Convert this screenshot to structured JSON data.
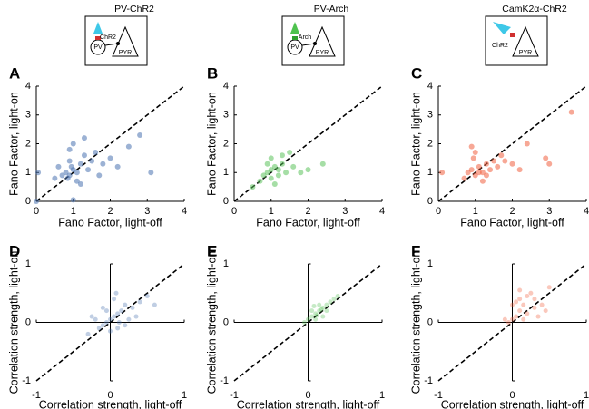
{
  "chart_data": [
    {
      "type": "scatter",
      "panel": "A",
      "title": "PV-ChR2",
      "inset_labels": [
        "PV",
        "ChR2",
        "PYR"
      ],
      "xlabel": "Fano Factor, light-off",
      "ylabel": "Fano Factor, light-on",
      "color": "#4a72b0",
      "xlim": [
        0,
        4
      ],
      "ylim": [
        0,
        4
      ],
      "xticks": [
        0,
        1,
        2,
        3,
        4
      ],
      "yticks": [
        0,
        1,
        2,
        3,
        4
      ],
      "x": [
        0.8,
        0.9,
        1.0,
        1.1,
        0.95,
        1.2,
        0.85,
        1.3,
        1.5,
        0.7,
        1.0,
        1.4,
        1.6,
        1.8,
        2.0,
        2.2,
        2.5,
        0.6,
        0.9,
        1.1,
        1.0,
        1.3,
        2.8,
        3.1,
        1.7,
        0.5,
        0.05,
        0.9,
        1.2,
        0.0
      ],
      "values": [
        1.0,
        0.9,
        1.1,
        1.0,
        1.2,
        1.3,
        0.8,
        1.6,
        1.4,
        0.9,
        2.0,
        1.1,
        1.7,
        1.3,
        1.5,
        1.2,
        1.9,
        1.2,
        1.8,
        0.7,
        0.05,
        2.2,
        2.3,
        1.0,
        0.9,
        0.8,
        1.0,
        1.4,
        0.6,
        0.0
      ]
    },
    {
      "type": "scatter",
      "panel": "B",
      "title": "PV-Arch",
      "inset_labels": [
        "PV",
        "Arch",
        "PYR"
      ],
      "xlabel": "Fano Factor, light-off",
      "ylabel": "Fano Factor, light-on",
      "color": "#5cc25c",
      "xlim": [
        0,
        4
      ],
      "ylim": [
        0,
        4
      ],
      "xticks": [
        0,
        1,
        2,
        3,
        4
      ],
      "yticks": [
        0,
        1,
        2,
        3,
        4
      ],
      "x": [
        0.9,
        1.0,
        1.1,
        1.2,
        0.8,
        1.3,
        1.0,
        1.4,
        0.7,
        1.5,
        1.6,
        1.1,
        0.9,
        2.0,
        2.4,
        1.2,
        1.0,
        0.5,
        1.3,
        1.8
      ],
      "values": [
        1.0,
        0.8,
        1.2,
        1.1,
        0.9,
        1.3,
        1.5,
        1.0,
        0.7,
        1.7,
        1.2,
        0.6,
        1.3,
        1.1,
        1.3,
        0.9,
        1.1,
        0.5,
        1.6,
        1.0
      ]
    },
    {
      "type": "scatter",
      "panel": "C",
      "title": "CamK2α-ChR2",
      "inset_labels": [
        "ChR2",
        "PYR"
      ],
      "xlabel": "Fano Factor, light-off",
      "ylabel": "Fano Factor, light-on",
      "color": "#f0603f",
      "xlim": [
        0,
        4
      ],
      "ylim": [
        0,
        4
      ],
      "xticks": [
        0,
        1,
        2,
        3,
        4
      ],
      "yticks": [
        0,
        1,
        2,
        3,
        4
      ],
      "x": [
        0.8,
        0.9,
        1.0,
        1.1,
        1.2,
        1.3,
        0.95,
        1.4,
        1.5,
        1.7,
        2.0,
        0.7,
        1.0,
        1.2,
        2.4,
        2.9,
        3.6,
        1.6,
        1.1,
        0.9,
        0.1,
        1.8,
        2.2,
        1.3,
        3.0
      ],
      "values": [
        1.0,
        1.1,
        0.9,
        1.2,
        1.0,
        1.3,
        1.5,
        1.1,
        1.4,
        1.6,
        1.3,
        0.8,
        1.7,
        0.7,
        2.0,
        1.5,
        3.1,
        1.2,
        1.0,
        1.9,
        1.0,
        1.4,
        1.1,
        0.9,
        1.3
      ]
    },
    {
      "type": "scatter",
      "panel": "D",
      "xlabel": "Correlation strength, light-off",
      "ylabel": "Correlation strength, light-on",
      "color": "#4a72b0",
      "xlim": [
        -1,
        1
      ],
      "ylim": [
        -1,
        1
      ],
      "xticks": [
        -1,
        0,
        1
      ],
      "yticks": [
        -1,
        0,
        1
      ],
      "x": [
        0,
        0.05,
        -0.05,
        0.1,
        -0.1,
        0.15,
        0.2,
        -0.15,
        0.3,
        -0.2,
        0.4,
        0.25,
        -0.3,
        0.05,
        0.1,
        0.5,
        -0.05,
        0.0,
        0.35,
        -0.1,
        0.6,
        0.2,
        -0.25,
        0.12,
        0.08
      ],
      "values": [
        0.05,
        0.1,
        0.0,
        0.15,
        -0.05,
        0.2,
        0.3,
        -0.1,
        0.25,
        0.05,
        0.35,
        0.05,
        -0.2,
        0.4,
        -0.1,
        0.45,
        0.2,
        -0.15,
        0.1,
        0.25,
        0.3,
        -0.05,
        0.1,
        0.0,
        0.5
      ]
    },
    {
      "type": "scatter",
      "panel": "E",
      "xlabel": "Correlation strength, light-off",
      "ylabel": "Correlation strength, light-on",
      "color": "#5cc25c",
      "xlim": [
        -1,
        1
      ],
      "ylim": [
        -1,
        1
      ],
      "xticks": [
        -1,
        0,
        1
      ],
      "yticks": [
        -1,
        0,
        1
      ],
      "x": [
        0.0,
        0.05,
        0.1,
        0.15,
        0.2,
        0.25,
        0.3,
        0.1,
        0.05,
        0.2,
        -0.05,
        0.35,
        0.15,
        0.4,
        0.25,
        0.12,
        0.18,
        0.08
      ],
      "values": [
        0.05,
        0.1,
        0.15,
        0.2,
        0.25,
        0.3,
        0.35,
        0.05,
        0.2,
        0.1,
        0.0,
        0.4,
        0.3,
        0.45,
        0.2,
        0.12,
        0.22,
        0.28
      ]
    },
    {
      "type": "scatter",
      "panel": "F",
      "xlabel": "Correlation strength, light-off",
      "ylabel": "Correlation strength, light-on",
      "color": "#f0603f",
      "xlim": [
        -1,
        1
      ],
      "ylim": [
        -1,
        1
      ],
      "xticks": [
        -1,
        0,
        1
      ],
      "yticks": [
        -1,
        0,
        1
      ],
      "x": [
        0.0,
        0.05,
        0.1,
        -0.05,
        0.15,
        0.2,
        0.3,
        0.1,
        -0.1,
        0.25,
        0.4,
        0.05,
        0.2,
        0.5,
        0.35,
        0.15,
        0.0,
        0.1,
        0.3,
        0.45
      ],
      "values": [
        0.05,
        0.1,
        0.2,
        0.0,
        0.3,
        0.15,
        0.25,
        0.4,
        0.05,
        0.5,
        0.3,
        0.35,
        0.45,
        0.6,
        0.1,
        0.05,
        0.3,
        0.55,
        0.4,
        0.2
      ]
    }
  ]
}
